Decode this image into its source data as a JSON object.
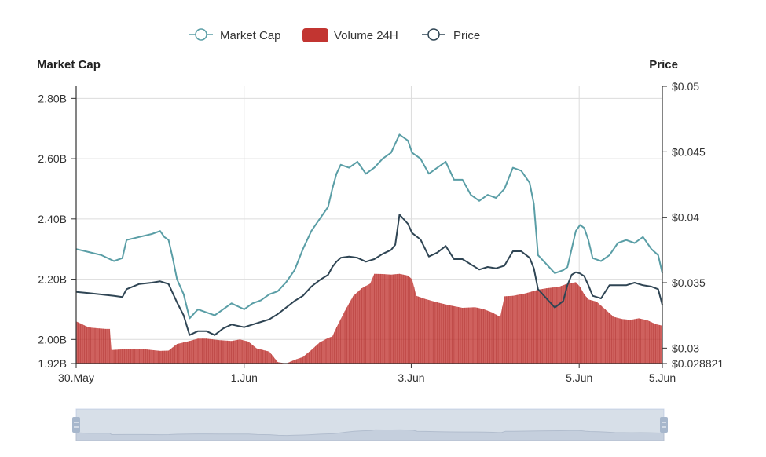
{
  "chart_data": {
    "type": "line",
    "legend": {
      "placement": "top-center",
      "items": [
        {
          "label": "Market Cap",
          "marker": "line-circle",
          "color": "#5a9ea6"
        },
        {
          "label": "Volume 24H",
          "marker": "rect",
          "color": "#c23531"
        },
        {
          "label": "Price",
          "marker": "line-circle",
          "color": "#2f4554"
        }
      ]
    },
    "left_axis": {
      "title": "Market Cap",
      "ylim": [
        1.92,
        2.84
      ],
      "ticks": [
        {
          "value": 1.92,
          "label": "1.92B"
        },
        {
          "value": 2.0,
          "label": "2.00B"
        },
        {
          "value": 2.2,
          "label": "2.20B"
        },
        {
          "value": 2.4,
          "label": "2.40B"
        },
        {
          "value": 2.6,
          "label": "2.60B"
        },
        {
          "value": 2.8,
          "label": "2.80B"
        }
      ]
    },
    "right_axis": {
      "title": "Price",
      "ylim": [
        0.028821,
        0.05
      ],
      "ticks": [
        {
          "value": 0.028821,
          "label": "$0.028821"
        },
        {
          "value": 0.03,
          "label": "$0.03"
        },
        {
          "value": 0.035,
          "label": "$0.035"
        },
        {
          "value": 0.04,
          "label": "$0.04"
        },
        {
          "value": 0.045,
          "label": "$0.045"
        },
        {
          "value": 0.05,
          "label": "$0.05"
        }
      ]
    },
    "x_axis": {
      "range_days": [
        0,
        6.98
      ],
      "ticks": [
        {
          "value": 0,
          "label": "30.May"
        },
        {
          "value": 2.0,
          "label": "1.Jun"
        },
        {
          "value": 3.99,
          "label": "3.Jun"
        },
        {
          "value": 5.99,
          "label": "5.Jun"
        },
        {
          "value": 6.98,
          "label": "5.Jun"
        }
      ]
    },
    "grid": true,
    "series": [
      {
        "name": "Market Cap",
        "axis": "left",
        "unit": "B",
        "color": "#5a9ea6",
        "points": [
          [
            0,
            2.3
          ],
          [
            0.15,
            2.29
          ],
          [
            0.3,
            2.28
          ],
          [
            0.45,
            2.26
          ],
          [
            0.55,
            2.27
          ],
          [
            0.6,
            2.33
          ],
          [
            0.75,
            2.34
          ],
          [
            0.9,
            2.35
          ],
          [
            1.0,
            2.36
          ],
          [
            1.05,
            2.34
          ],
          [
            1.1,
            2.33
          ],
          [
            1.15,
            2.27
          ],
          [
            1.2,
            2.2
          ],
          [
            1.28,
            2.15
          ],
          [
            1.35,
            2.07
          ],
          [
            1.45,
            2.1
          ],
          [
            1.55,
            2.09
          ],
          [
            1.65,
            2.08
          ],
          [
            1.75,
            2.1
          ],
          [
            1.85,
            2.12
          ],
          [
            2.0,
            2.1
          ],
          [
            2.1,
            2.12
          ],
          [
            2.2,
            2.13
          ],
          [
            2.3,
            2.15
          ],
          [
            2.4,
            2.16
          ],
          [
            2.5,
            2.19
          ],
          [
            2.6,
            2.23
          ],
          [
            2.7,
            2.3
          ],
          [
            2.8,
            2.36
          ],
          [
            2.9,
            2.4
          ],
          [
            3.0,
            2.44
          ],
          [
            3.05,
            2.5
          ],
          [
            3.1,
            2.55
          ],
          [
            3.15,
            2.58
          ],
          [
            3.25,
            2.57
          ],
          [
            3.35,
            2.59
          ],
          [
            3.45,
            2.55
          ],
          [
            3.55,
            2.57
          ],
          [
            3.65,
            2.6
          ],
          [
            3.75,
            2.62
          ],
          [
            3.8,
            2.65
          ],
          [
            3.85,
            2.68
          ],
          [
            3.95,
            2.66
          ],
          [
            4.0,
            2.62
          ],
          [
            4.1,
            2.6
          ],
          [
            4.2,
            2.55
          ],
          [
            4.3,
            2.57
          ],
          [
            4.4,
            2.59
          ],
          [
            4.5,
            2.53
          ],
          [
            4.6,
            2.53
          ],
          [
            4.7,
            2.48
          ],
          [
            4.8,
            2.46
          ],
          [
            4.9,
            2.48
          ],
          [
            5.0,
            2.47
          ],
          [
            5.1,
            2.5
          ],
          [
            5.2,
            2.57
          ],
          [
            5.3,
            2.56
          ],
          [
            5.4,
            2.52
          ],
          [
            5.45,
            2.45
          ],
          [
            5.5,
            2.28
          ],
          [
            5.6,
            2.25
          ],
          [
            5.7,
            2.22
          ],
          [
            5.8,
            2.23
          ],
          [
            5.85,
            2.24
          ],
          [
            5.9,
            2.3
          ],
          [
            5.95,
            2.36
          ],
          [
            6.0,
            2.38
          ],
          [
            6.05,
            2.37
          ],
          [
            6.1,
            2.33
          ],
          [
            6.15,
            2.27
          ],
          [
            6.25,
            2.26
          ],
          [
            6.35,
            2.28
          ],
          [
            6.45,
            2.32
          ],
          [
            6.55,
            2.33
          ],
          [
            6.65,
            2.32
          ],
          [
            6.75,
            2.34
          ],
          [
            6.85,
            2.3
          ],
          [
            6.93,
            2.28
          ],
          [
            6.98,
            2.22
          ]
        ]
      },
      {
        "name": "Price",
        "axis": "right",
        "unit": "$",
        "color": "#2f4554",
        "points": [
          [
            0,
            0.0343
          ],
          [
            0.15,
            0.0342
          ],
          [
            0.3,
            0.0341
          ],
          [
            0.45,
            0.034
          ],
          [
            0.55,
            0.0339
          ],
          [
            0.6,
            0.0345
          ],
          [
            0.75,
            0.0349
          ],
          [
            0.9,
            0.035
          ],
          [
            1.0,
            0.0351
          ],
          [
            1.05,
            0.035
          ],
          [
            1.1,
            0.0349
          ],
          [
            1.15,
            0.0342
          ],
          [
            1.2,
            0.0335
          ],
          [
            1.28,
            0.0325
          ],
          [
            1.35,
            0.031
          ],
          [
            1.45,
            0.0313
          ],
          [
            1.55,
            0.0313
          ],
          [
            1.65,
            0.031
          ],
          [
            1.75,
            0.0315
          ],
          [
            1.85,
            0.0318
          ],
          [
            2.0,
            0.0316
          ],
          [
            2.1,
            0.0318
          ],
          [
            2.2,
            0.032
          ],
          [
            2.3,
            0.0322
          ],
          [
            2.4,
            0.0326
          ],
          [
            2.5,
            0.0331
          ],
          [
            2.6,
            0.0336
          ],
          [
            2.7,
            0.034
          ],
          [
            2.8,
            0.0347
          ],
          [
            2.9,
            0.0352
          ],
          [
            3.0,
            0.0356
          ],
          [
            3.05,
            0.0362
          ],
          [
            3.1,
            0.0366
          ],
          [
            3.15,
            0.0369
          ],
          [
            3.25,
            0.037
          ],
          [
            3.35,
            0.0369
          ],
          [
            3.45,
            0.0366
          ],
          [
            3.55,
            0.0368
          ],
          [
            3.65,
            0.0372
          ],
          [
            3.75,
            0.0375
          ],
          [
            3.8,
            0.0379
          ],
          [
            3.85,
            0.0402
          ],
          [
            3.95,
            0.0395
          ],
          [
            4.0,
            0.0388
          ],
          [
            4.1,
            0.0383
          ],
          [
            4.2,
            0.037
          ],
          [
            4.3,
            0.0373
          ],
          [
            4.4,
            0.0378
          ],
          [
            4.5,
            0.0368
          ],
          [
            4.6,
            0.0368
          ],
          [
            4.7,
            0.0364
          ],
          [
            4.8,
            0.036
          ],
          [
            4.9,
            0.0362
          ],
          [
            5.0,
            0.0361
          ],
          [
            5.1,
            0.0363
          ],
          [
            5.2,
            0.0374
          ],
          [
            5.3,
            0.0374
          ],
          [
            5.4,
            0.0369
          ],
          [
            5.45,
            0.0361
          ],
          [
            5.5,
            0.0345
          ],
          [
            5.6,
            0.0338
          ],
          [
            5.7,
            0.0331
          ],
          [
            5.8,
            0.0336
          ],
          [
            5.85,
            0.0348
          ],
          [
            5.9,
            0.0356
          ],
          [
            5.95,
            0.0358
          ],
          [
            6.0,
            0.0357
          ],
          [
            6.05,
            0.0355
          ],
          [
            6.1,
            0.0348
          ],
          [
            6.15,
            0.034
          ],
          [
            6.25,
            0.0338
          ],
          [
            6.35,
            0.0348
          ],
          [
            6.45,
            0.0348
          ],
          [
            6.55,
            0.0348
          ],
          [
            6.65,
            0.035
          ],
          [
            6.75,
            0.0348
          ],
          [
            6.85,
            0.0347
          ],
          [
            6.93,
            0.0345
          ],
          [
            6.98,
            0.0333
          ]
        ]
      },
      {
        "name": "Volume 24H",
        "type": "area-bar",
        "axis": "left",
        "unit": "B",
        "color": "#c23531",
        "points": [
          [
            0,
            2.06
          ],
          [
            0.15,
            2.04
          ],
          [
            0.35,
            2.035
          ],
          [
            0.4,
            2.035
          ],
          [
            0.42,
            1.965
          ],
          [
            0.6,
            1.968
          ],
          [
            0.8,
            1.968
          ],
          [
            1.0,
            1.962
          ],
          [
            1.1,
            1.963
          ],
          [
            1.2,
            1.985
          ],
          [
            1.35,
            1.995
          ],
          [
            1.45,
            2.003
          ],
          [
            1.55,
            2.003
          ],
          [
            1.7,
            1.998
          ],
          [
            1.85,
            1.995
          ],
          [
            1.95,
            2.0
          ],
          [
            2.05,
            1.993
          ],
          [
            2.15,
            1.97
          ],
          [
            2.3,
            1.96
          ],
          [
            2.4,
            1.925
          ],
          [
            2.5,
            1.92
          ],
          [
            2.6,
            1.932
          ],
          [
            2.7,
            1.942
          ],
          [
            2.8,
            1.965
          ],
          [
            2.9,
            1.99
          ],
          [
            3.0,
            2.005
          ],
          [
            3.05,
            2.01
          ],
          [
            3.1,
            2.04
          ],
          [
            3.2,
            2.095
          ],
          [
            3.3,
            2.145
          ],
          [
            3.4,
            2.17
          ],
          [
            3.5,
            2.185
          ],
          [
            3.55,
            2.218
          ],
          [
            3.65,
            2.217
          ],
          [
            3.75,
            2.215
          ],
          [
            3.85,
            2.218
          ],
          [
            3.95,
            2.212
          ],
          [
            4.0,
            2.2
          ],
          [
            4.05,
            2.145
          ],
          [
            4.15,
            2.135
          ],
          [
            4.3,
            2.123
          ],
          [
            4.45,
            2.113
          ],
          [
            4.6,
            2.105
          ],
          [
            4.75,
            2.107
          ],
          [
            4.85,
            2.101
          ],
          [
            4.95,
            2.09
          ],
          [
            5.05,
            2.075
          ],
          [
            5.1,
            2.143
          ],
          [
            5.2,
            2.145
          ],
          [
            5.35,
            2.153
          ],
          [
            5.5,
            2.165
          ],
          [
            5.6,
            2.17
          ],
          [
            5.75,
            2.175
          ],
          [
            5.85,
            2.185
          ],
          [
            5.95,
            2.19
          ],
          [
            6.0,
            2.175
          ],
          [
            6.05,
            2.15
          ],
          [
            6.1,
            2.133
          ],
          [
            6.2,
            2.125
          ],
          [
            6.3,
            2.1
          ],
          [
            6.4,
            2.075
          ],
          [
            6.5,
            2.068
          ],
          [
            6.6,
            2.065
          ],
          [
            6.7,
            2.07
          ],
          [
            6.8,
            2.064
          ],
          [
            6.9,
            2.051
          ],
          [
            6.98,
            2.046
          ]
        ]
      }
    ],
    "data_zoom": {
      "start_day": 0,
      "end_day": 6.98
    }
  }
}
